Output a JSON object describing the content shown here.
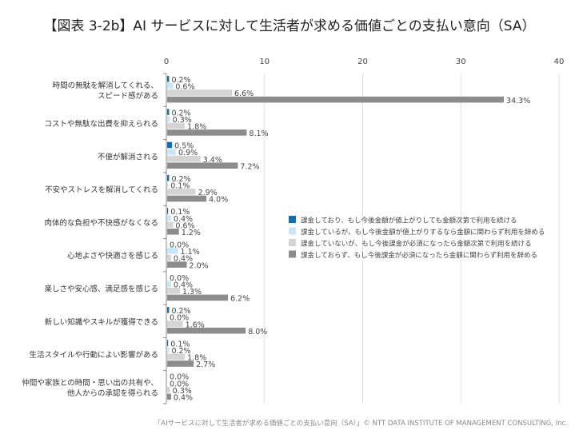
{
  "chart_data": {
    "type": "bar",
    "orientation": "horizontal",
    "title": "【図表 3-2b】AI サービスに対して生活者が求める価値ごとの支払い意向（SA）",
    "xlim": [
      0,
      40
    ],
    "xticks": [
      0,
      10,
      20,
      30,
      40
    ],
    "grid": true,
    "legend_position": "right",
    "categories": [
      "時間の無駄を解消してくれる、\nスピード感がある",
      "コストや無駄な出費を抑えられる",
      "不便が解消される",
      "不安やストレスを解消してくれる",
      "肉体的な負担や不快感がなくなる",
      "心地よさや快適さを感じる",
      "楽しさや安心感、満足感を感じる",
      "新しい知識やスキルが獲得できる",
      "生活スタイルや行動によい影響がある",
      "仲間や家族との時間・思い出の共有や、\n他人からの承認を得られる"
    ],
    "series": [
      {
        "name": "課金しており、もし今後金額が値上がりしても金額次第で利用を続ける",
        "color": "#0e6fb5",
        "values": [
          0.2,
          0.2,
          0.5,
          0.2,
          0.1,
          0.0,
          0.0,
          0.2,
          0.1,
          0.0
        ]
      },
      {
        "name": "課金しているが、もし今後金額が値上がりするなら金額に関わらず利用を辞める",
        "color": "#c5e6fb",
        "values": [
          0.6,
          0.3,
          0.9,
          0.1,
          0.4,
          1.1,
          0.4,
          0.0,
          0.2,
          0.0
        ]
      },
      {
        "name": "課金していないが、もし今後課金が必須になったら金額次第で利用を続ける",
        "color": "#d4d4d4",
        "values": [
          6.6,
          1.8,
          3.4,
          2.9,
          0.6,
          0.4,
          1.3,
          1.6,
          1.8,
          0.3
        ]
      },
      {
        "name": "課金しておらず、もし今後課金が必須になったら金額に関わらず利用を辞める",
        "color": "#8c8c8c",
        "values": [
          34.3,
          8.1,
          7.2,
          4.0,
          1.2,
          2.0,
          6.2,
          8.0,
          2.7,
          0.4
        ]
      }
    ],
    "value_suffix": "%"
  },
  "footer": "「AIサービスに対して生活者が求める価値ごとの支払い意向（SA）」© NTT DATA INSTITUTE OF MANAGEMENT CONSULTING, Inc."
}
